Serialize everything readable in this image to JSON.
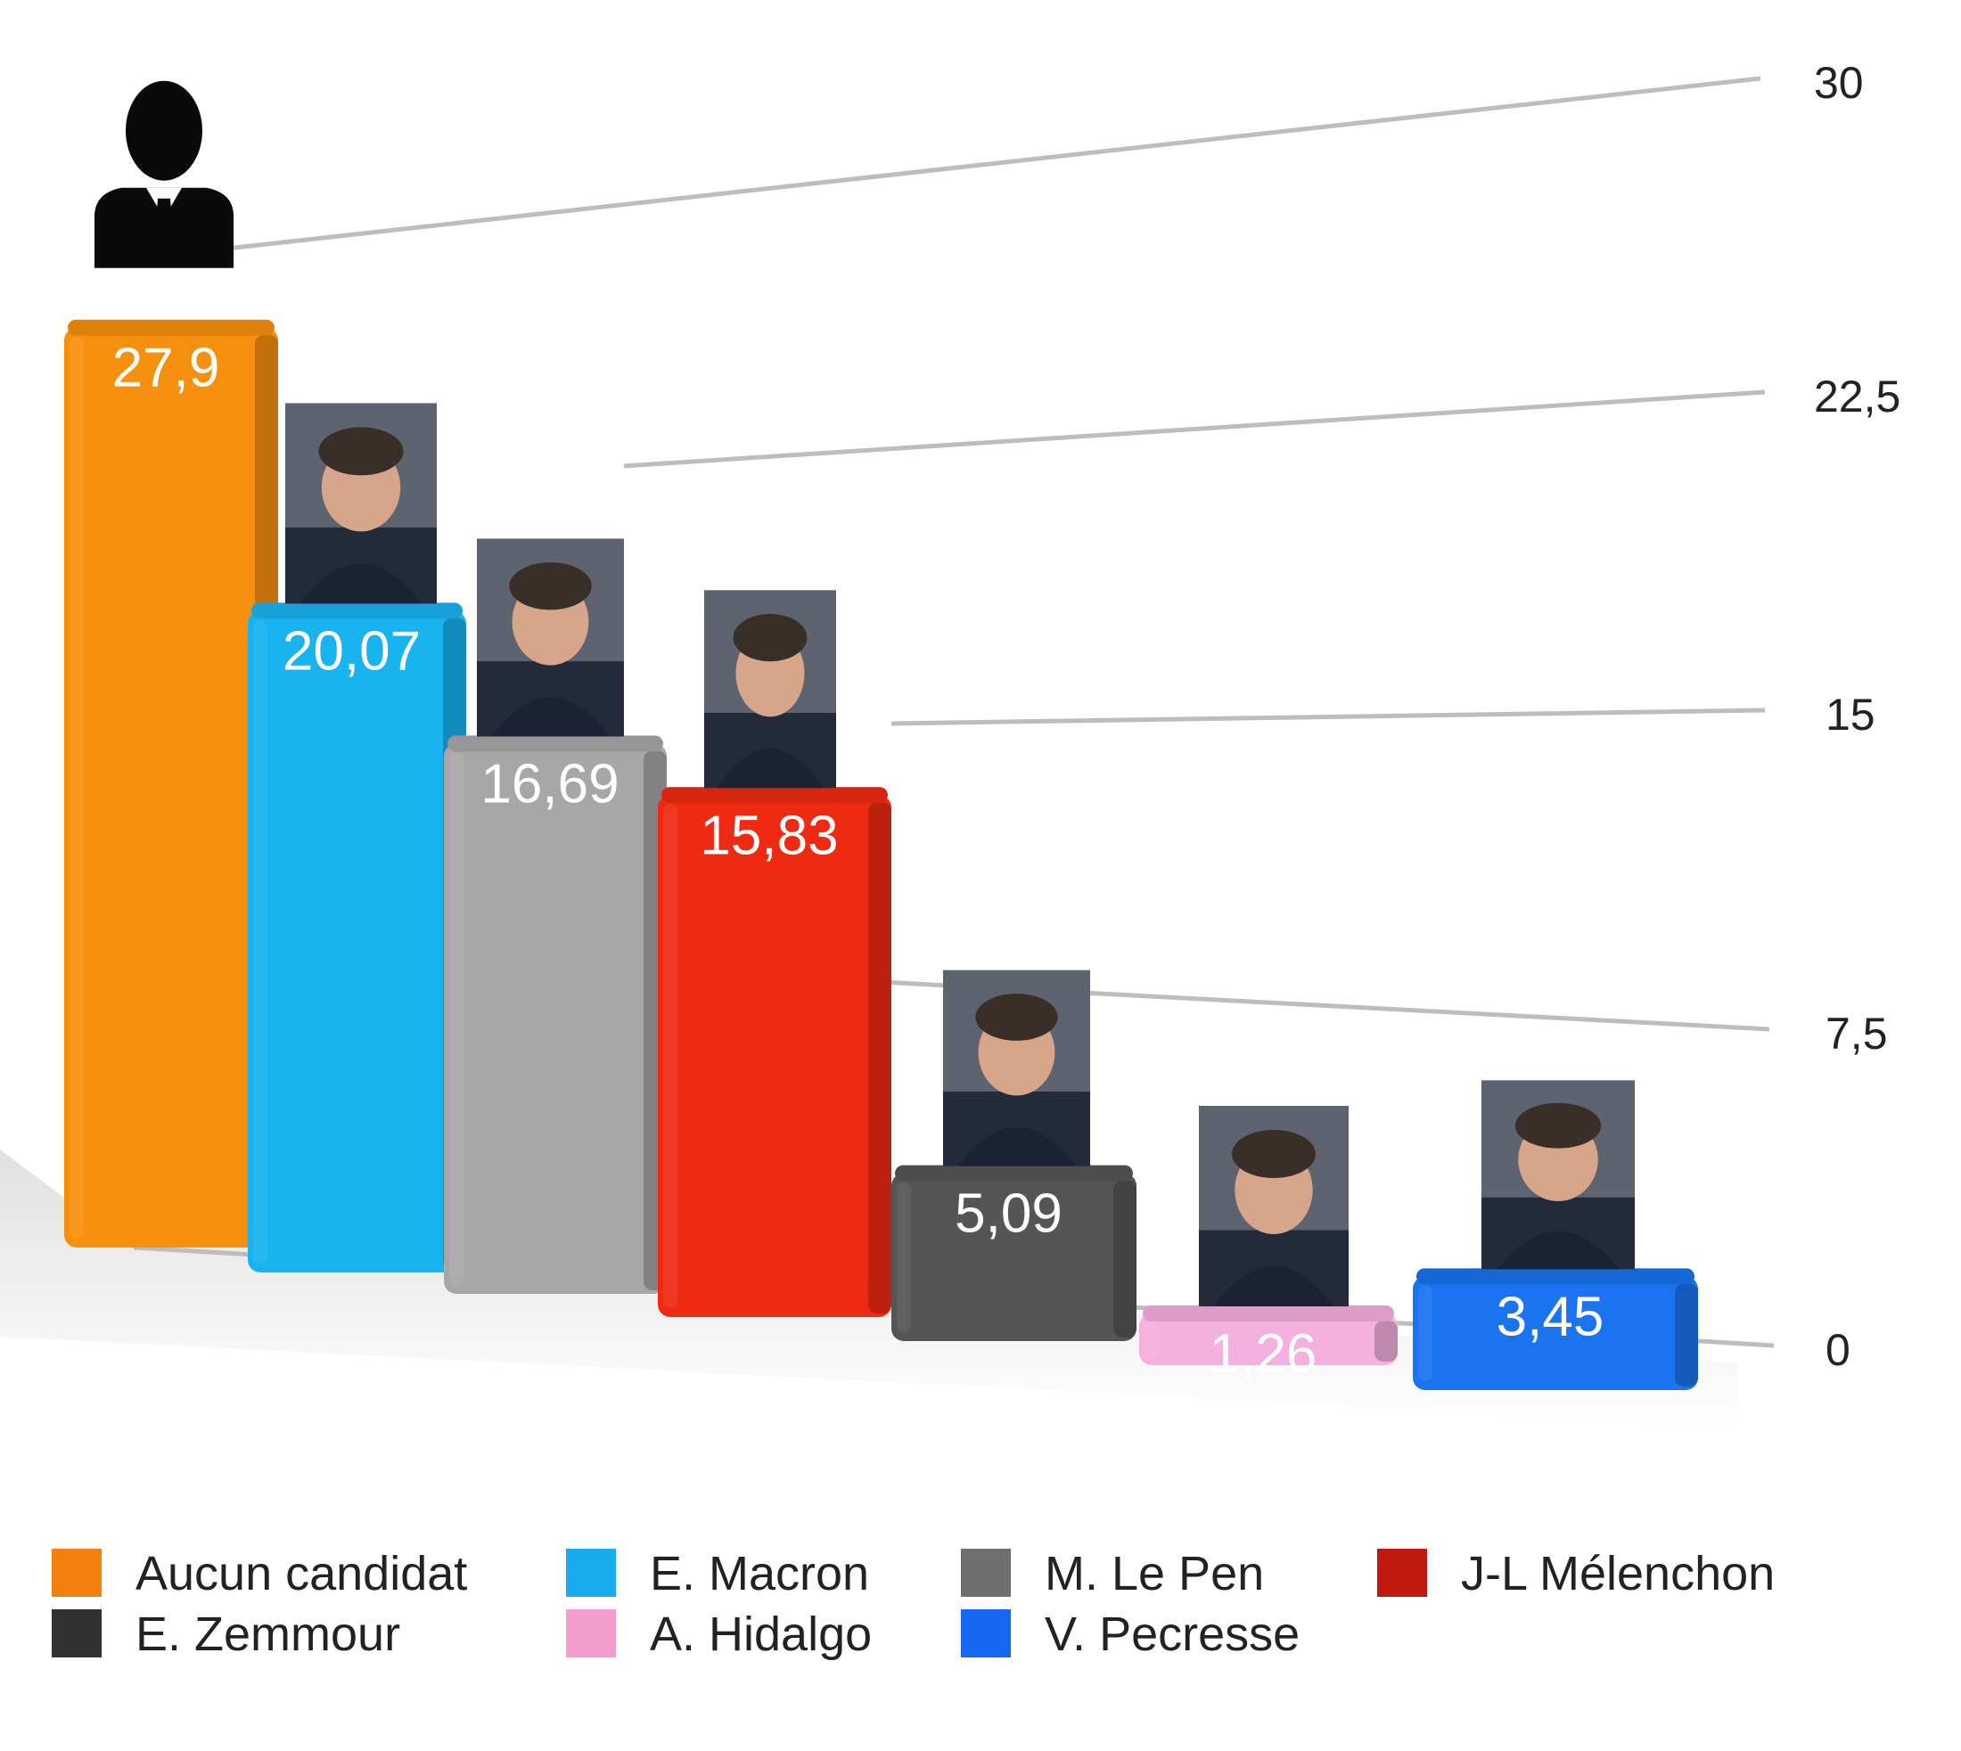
{
  "chart_data": {
    "type": "bar",
    "title": "",
    "xlabel": "",
    "ylabel": "",
    "ylim": [
      0,
      30
    ],
    "yticks": [
      "0",
      "7,5",
      "15",
      "22,5",
      "30"
    ],
    "ytick_values": [
      0,
      7.5,
      15,
      22.5,
      30
    ],
    "grid": true,
    "legend_position": "bottom",
    "categories": [
      "Aucun candidat",
      "E. Macron",
      "M. Le Pen",
      "J-L Mélenchon",
      "E. Zemmour",
      "A. Hidalgo",
      "V. Pecresse"
    ],
    "values": [
      27.9,
      20.07,
      16.69,
      15.83,
      5.09,
      1.26,
      3.45
    ],
    "value_labels": [
      "27,9",
      "20,07",
      "16,69",
      "15,83",
      "5,09",
      "1,26",
      "3,45"
    ],
    "colors": [
      "#f7900e",
      "#19b3f0",
      "#a7a7a7",
      "#ee2a12",
      "#555555",
      "#f4b0de",
      "#1a74ef"
    ],
    "legend_colors": [
      "#f57f0c",
      "#19aaf0",
      "#6f6f6f",
      "#c0170e",
      "#323232",
      "#f39dcf",
      "#1566f0"
    ],
    "icons": [
      "silhouette-icon",
      "portrait-photo",
      "portrait-photo",
      "portrait-photo",
      "portrait-photo",
      "portrait-photo",
      "portrait-photo"
    ]
  }
}
